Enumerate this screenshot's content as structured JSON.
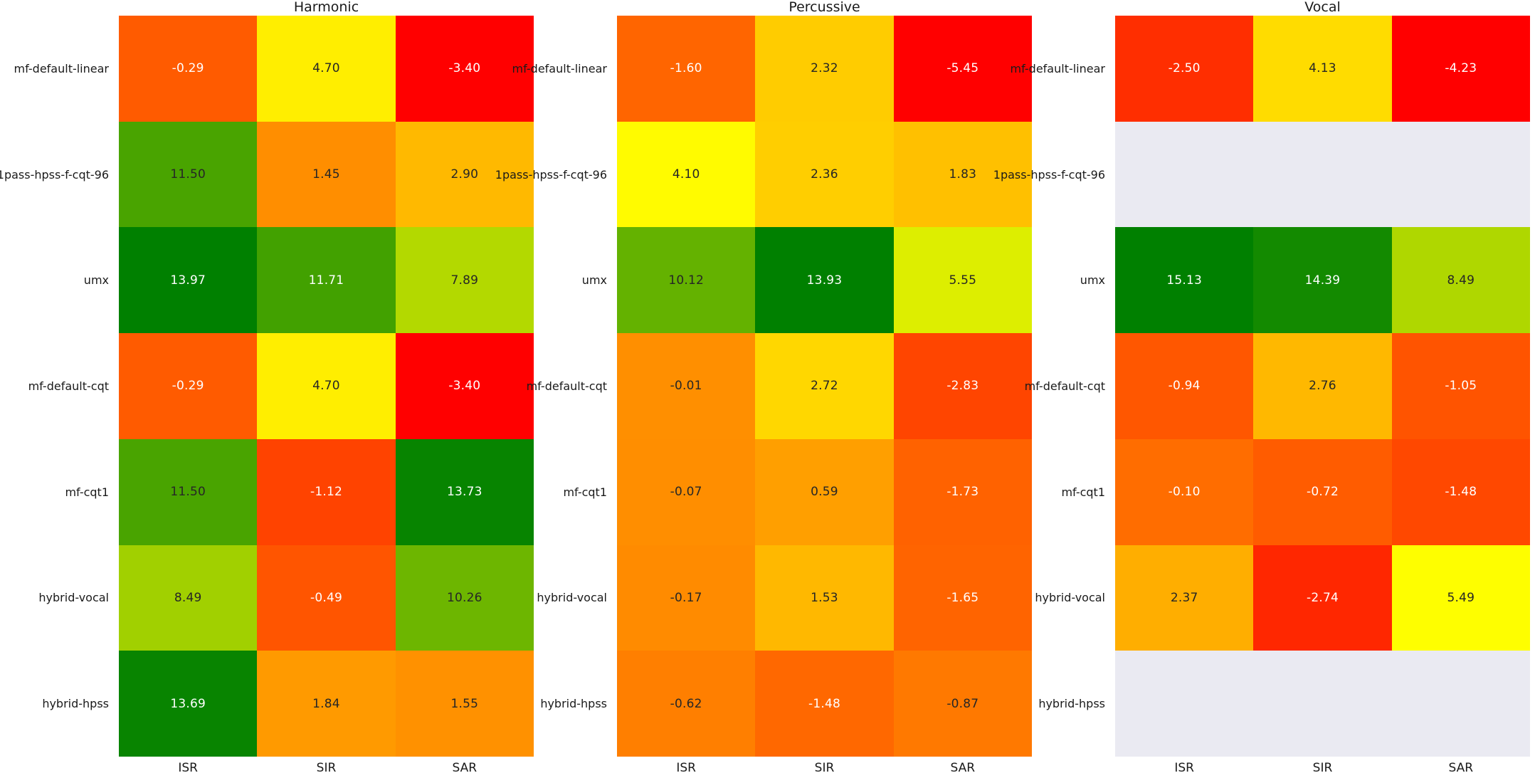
{
  "figure": {
    "background": "#ffffff",
    "nan_color": "#eaeaf2",
    "colormap": {
      "low": "#ff0000",
      "mid": "#ffff00",
      "high": "#008000"
    },
    "annotation_dark": "#262626",
    "annotation_light": "#ffffff"
  },
  "chart_data": [
    {
      "type": "heatmap",
      "title": "Harmonic",
      "rows": [
        "mf-default-linear",
        "1pass-hpss-f-cqt-96",
        "umx",
        "mf-default-cqt",
        "mf-cqt1",
        "hybrid-vocal",
        "hybrid-hpss"
      ],
      "cols": [
        "ISR",
        "SIR",
        "SAR"
      ],
      "values": [
        [
          -0.29,
          4.7,
          -3.4
        ],
        [
          11.5,
          1.45,
          2.9
        ],
        [
          13.97,
          11.71,
          7.89
        ],
        [
          -0.29,
          4.7,
          -3.4
        ],
        [
          11.5,
          -1.12,
          13.73
        ],
        [
          8.49,
          -0.49,
          10.26
        ],
        [
          13.69,
          1.84,
          1.55
        ]
      ]
    },
    {
      "type": "heatmap",
      "title": "Percussive",
      "rows": [
        "mf-default-linear",
        "1pass-hpss-f-cqt-96",
        "umx",
        "mf-default-cqt",
        "mf-cqt1",
        "hybrid-vocal",
        "hybrid-hpss"
      ],
      "cols": [
        "ISR",
        "SIR",
        "SAR"
      ],
      "values": [
        [
          -1.6,
          2.32,
          -5.45
        ],
        [
          4.1,
          2.36,
          1.83
        ],
        [
          10.12,
          13.93,
          5.55
        ],
        [
          -0.01,
          2.72,
          -2.83
        ],
        [
          -0.07,
          0.59,
          -1.73
        ],
        [
          -0.17,
          1.53,
          -1.65
        ],
        [
          -0.62,
          -1.48,
          -0.87
        ]
      ]
    },
    {
      "type": "heatmap",
      "title": "Vocal",
      "rows": [
        "mf-default-linear",
        "1pass-hpss-f-cqt-96",
        "umx",
        "mf-default-cqt",
        "mf-cqt1",
        "hybrid-vocal",
        "hybrid-hpss"
      ],
      "cols": [
        "ISR",
        "SIR",
        "SAR"
      ],
      "values": [
        [
          -2.5,
          4.13,
          -4.23
        ],
        [
          null,
          null,
          null
        ],
        [
          15.13,
          14.39,
          8.49
        ],
        [
          -0.94,
          2.76,
          -1.05
        ],
        [
          -0.1,
          -0.72,
          -1.48
        ],
        [
          2.37,
          -2.74,
          5.49
        ],
        [
          null,
          null,
          null
        ]
      ]
    }
  ]
}
